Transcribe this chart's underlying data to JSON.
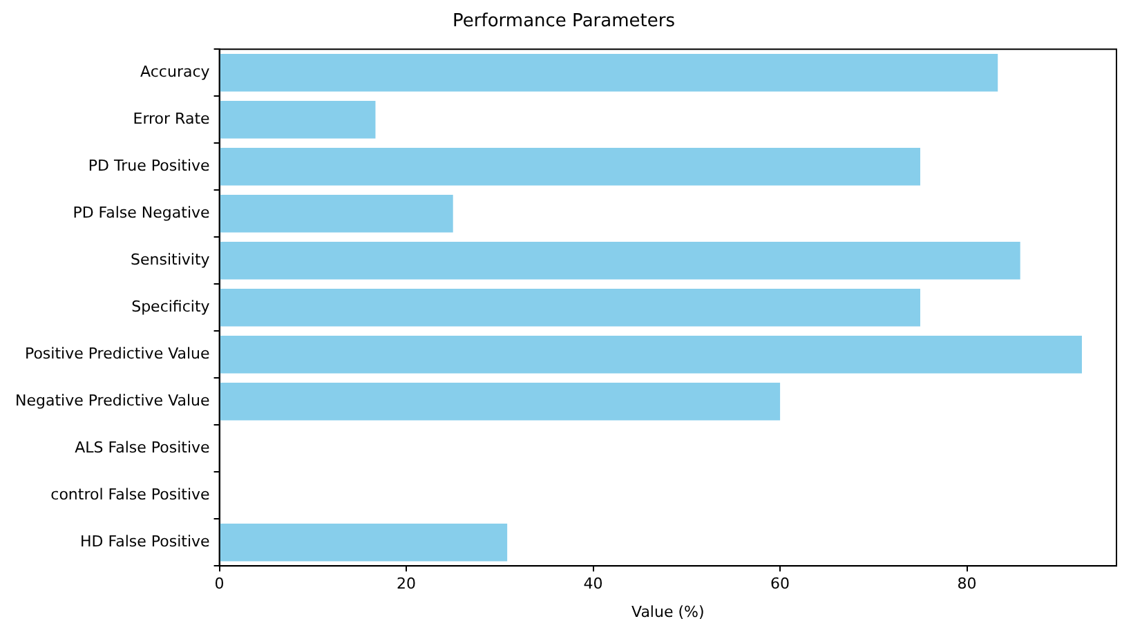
{
  "chart_data": {
    "type": "bar",
    "orientation": "horizontal",
    "title": "Performance Parameters",
    "xlabel": "Value (%)",
    "categories": [
      "Accuracy",
      "Error Rate",
      "PD True Positive",
      "PD False Negative",
      "Sensitivity",
      "Specificity",
      "Positive Predictive Value",
      "Negative Predictive Value",
      "ALS False Positive",
      "control False Positive",
      "HD False Positive"
    ],
    "values": [
      83.3,
      16.7,
      75,
      25,
      85.7,
      75,
      92.3,
      60,
      0,
      0,
      30.8
    ],
    "color": "#87ceeb",
    "xlim": [
      0,
      96
    ],
    "xticks": [
      0,
      20,
      40,
      60,
      80
    ],
    "grid": false,
    "legend": false
  }
}
